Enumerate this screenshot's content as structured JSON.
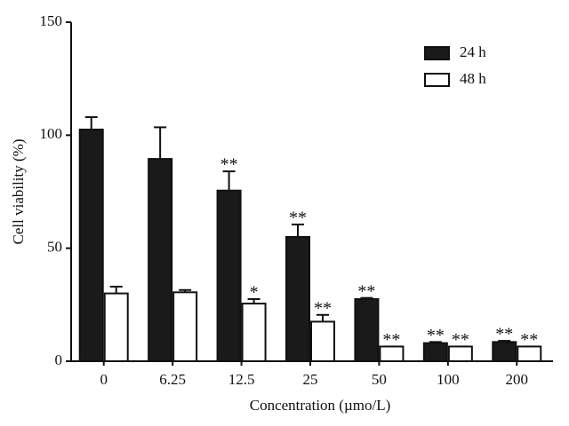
{
  "chart_data": {
    "type": "bar",
    "x_label": "Concentration (µmo/L)",
    "y_label": "Cell viability (%)",
    "categories": [
      "0",
      "6.25",
      "12.5",
      "25",
      "50",
      "100",
      "200"
    ],
    "series": [
      {
        "name": "24 h",
        "color": "#1a1a1a",
        "values": [
          102.5,
          89.5,
          75.5,
          55,
          27.5,
          8,
          8.5
        ],
        "errors": [
          5.5,
          14,
          8.5,
          5.5,
          0.5,
          0.5,
          0.5
        ],
        "annotations": [
          null,
          null,
          "**",
          "**",
          "**",
          "**",
          "**"
        ]
      },
      {
        "name": "48 h",
        "color": "#ffffff",
        "values": [
          30,
          30.5,
          25.5,
          17.5,
          6.5,
          6.5,
          6.5
        ],
        "errors": [
          3,
          1,
          2,
          3,
          0,
          0,
          0
        ],
        "annotations": [
          null,
          null,
          "*",
          "**",
          "**",
          "**",
          "**"
        ]
      }
    ],
    "ylim": [
      0,
      150
    ],
    "yticks": [
      0,
      50,
      100,
      150
    ]
  }
}
